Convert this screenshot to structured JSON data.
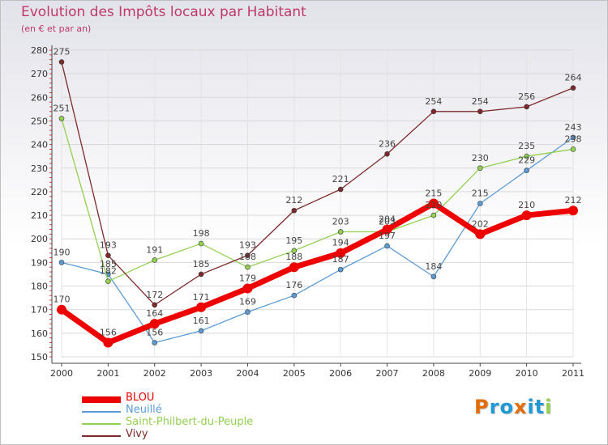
{
  "chart_data": {
    "type": "line",
    "title": "Evolution des Impôts locaux par Habitant",
    "subtitle": "(en € et par an)",
    "xlabel": "",
    "ylabel": "",
    "ylim": [
      150,
      280
    ],
    "yticks": [
      150,
      160,
      170,
      180,
      190,
      200,
      210,
      220,
      230,
      240,
      250,
      260,
      270,
      280
    ],
    "categories": [
      "2000",
      "2001",
      "2002",
      "2003",
      "2004",
      "2005",
      "2006",
      "2007",
      "2008",
      "2009",
      "2010",
      "2011"
    ],
    "series": [
      {
        "name": "BLOU",
        "color": "#ee0000",
        "values": [
          170,
          156,
          164,
          171,
          179,
          188,
          194,
          204,
          215,
          202,
          210,
          212
        ]
      },
      {
        "name": "Neuillé",
        "color": "#5b9bd5",
        "values": [
          190,
          185,
          156,
          161,
          169,
          176,
          187,
          197,
          184,
          215,
          229,
          243
        ]
      },
      {
        "name": "Saint-Philbert-du-Peuple",
        "color": "#92d050",
        "values": [
          251,
          182,
          191,
          198,
          188,
          195,
          203,
          203,
          210,
          230,
          235,
          238
        ]
      },
      {
        "name": "Vivy",
        "color": "#7f2a2a",
        "values": [
          275,
          193,
          172,
          185,
          193,
          212,
          221,
          236,
          254,
          254,
          256,
          264
        ]
      }
    ]
  },
  "legend": {
    "items": [
      {
        "label": "BLOU",
        "color": "#ee0000"
      },
      {
        "label": "Neuillé",
        "color": "#5b9bd5"
      },
      {
        "label": "Saint-Philbert-du-Peuple",
        "color": "#92d050"
      },
      {
        "label": "Vivy",
        "color": "#7f2a2a"
      }
    ]
  },
  "logo": {
    "text": "Proxiti",
    "letters": [
      {
        "ch": "P",
        "color": "#e36c09"
      },
      {
        "ch": "r",
        "color": "#1f9ad6"
      },
      {
        "ch": "o",
        "color": "#1f9ad6"
      },
      {
        "ch": "x",
        "color": "#e36c09"
      },
      {
        "ch": "i",
        "color": "#1f9ad6"
      },
      {
        "ch": "t",
        "color": "#1f9ad6"
      },
      {
        "ch": "i",
        "color": "#92d050"
      }
    ]
  }
}
